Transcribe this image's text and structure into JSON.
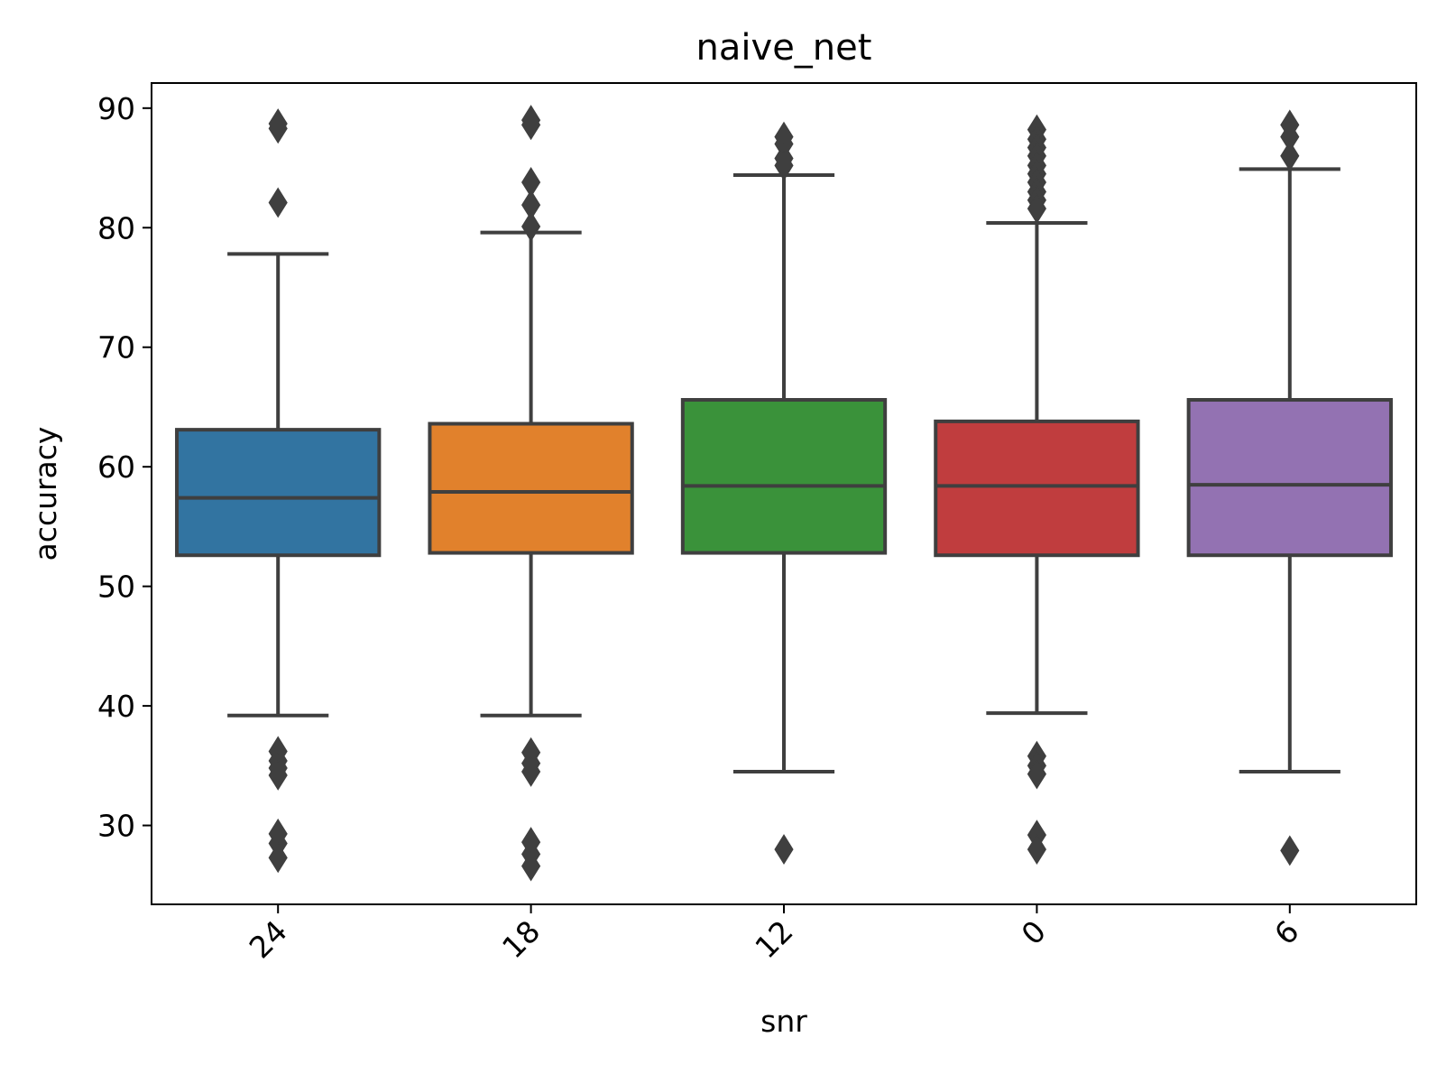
{
  "chart_data": {
    "type": "box",
    "title": "naive_net",
    "xlabel": "snr",
    "ylabel": "accuracy",
    "ylim": [
      23.4,
      92.1
    ],
    "yticks": [
      30,
      40,
      50,
      60,
      70,
      80,
      90
    ],
    "grid": false,
    "categories": [
      "24",
      "18",
      "12",
      "0",
      "6"
    ],
    "colors": [
      "#3274a1",
      "#e1812c",
      "#3a923a",
      "#c03d3e",
      "#9372b2"
    ],
    "edge_color": "#3f3f3f",
    "boxes": [
      {
        "category": "24",
        "whisker_low": 39.2,
        "q1": 52.6,
        "median": 57.4,
        "q3": 63.1,
        "whisker_high": 77.8,
        "outliers": [
          88.7,
          88.3,
          82.1,
          36.2,
          35.4,
          34.8,
          34.2,
          29.3,
          28.5,
          27.3
        ]
      },
      {
        "category": "18",
        "whisker_low": 39.2,
        "q1": 52.8,
        "median": 57.9,
        "q3": 63.6,
        "whisker_high": 79.6,
        "outliers": [
          89.0,
          88.6,
          83.8,
          81.9,
          80.1,
          36.1,
          35.2,
          34.5,
          28.6,
          27.6,
          26.6
        ]
      },
      {
        "category": "12",
        "whisker_low": 34.5,
        "q1": 52.8,
        "median": 58.4,
        "q3": 65.6,
        "whisker_high": 84.4,
        "outliers": [
          87.6,
          87.0,
          85.8,
          85.2,
          28.0
        ]
      },
      {
        "category": "0",
        "whisker_low": 39.4,
        "q1": 52.6,
        "median": 58.4,
        "q3": 63.8,
        "whisker_high": 80.4,
        "outliers": [
          88.2,
          87.4,
          86.7,
          86.0,
          85.2,
          84.5,
          83.8,
          83.0,
          82.3,
          81.6,
          35.8,
          35.0,
          34.3,
          29.2,
          28.0
        ]
      },
      {
        "category": "6",
        "whisker_low": 34.5,
        "q1": 52.6,
        "median": 58.5,
        "q3": 65.6,
        "whisker_high": 84.9,
        "outliers": [
          88.6,
          87.6,
          86.0,
          27.9
        ]
      }
    ]
  }
}
